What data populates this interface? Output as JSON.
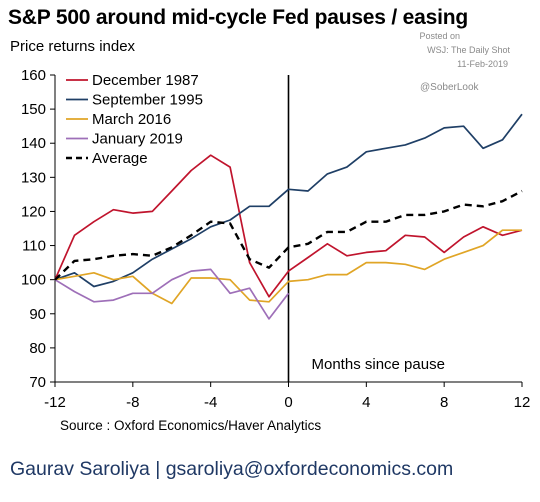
{
  "header": {
    "title": "S&P 500 around mid-cycle Fed pauses / easing",
    "subtitle": "Price returns index"
  },
  "watermark": {
    "posted_on": "Posted on",
    "outlet": "WSJ: The Daily Shot",
    "date": "11-Feb-2019",
    "handle": "@SoberLook"
  },
  "footer": {
    "source": "Source : Oxford Economics/Haver Analytics",
    "author": "Gaurav Saroliya | gsaroliya@oxfordeconomics.com"
  },
  "chart_data": {
    "type": "line",
    "title": "S&P 500 around mid-cycle Fed pauses / easing",
    "ylabel": "Price returns index",
    "xlim": [
      -12,
      12
    ],
    "ylim": [
      70,
      160
    ],
    "xticks": [
      -12,
      -8,
      -4,
      0,
      4,
      8,
      12
    ],
    "yticks": [
      70,
      80,
      90,
      100,
      110,
      120,
      130,
      140,
      150,
      160
    ],
    "grid": false,
    "legend": "top-left",
    "annotation": {
      "text": "Months since pause",
      "x": 0
    },
    "series": [
      {
        "name": "December 1987",
        "color": "#c0142d",
        "dash": false,
        "x": [
          -12,
          -11,
          -10,
          -9,
          -8,
          -7,
          -6,
          -5,
          -4,
          -3,
          -2,
          -1,
          0,
          1,
          2,
          3,
          4,
          5,
          6,
          7,
          8,
          9,
          10,
          11,
          12
        ],
        "values": [
          100,
          113,
          117,
          120.5,
          119.5,
          120,
          126,
          132,
          136.5,
          133,
          105,
          95,
          102.5,
          106.5,
          110.5,
          107,
          108,
          108.5,
          113,
          112.5,
          108,
          112.5,
          115.5,
          113,
          114.5
        ]
      },
      {
        "name": "September 1995",
        "color": "#1f3f66",
        "dash": false,
        "x": [
          -12,
          -11,
          -10,
          -9,
          -8,
          -7,
          -6,
          -5,
          -4,
          -3,
          -2,
          -1,
          0,
          1,
          2,
          3,
          4,
          5,
          6,
          7,
          8,
          9,
          10,
          11,
          12
        ],
        "values": [
          100,
          102,
          98,
          99.5,
          102,
          106,
          109,
          112,
          115.5,
          117.5,
          121.5,
          121.5,
          126.5,
          126,
          131,
          133,
          137.5,
          138.5,
          139.5,
          141.5,
          144.5,
          145,
          138.5,
          141,
          148.5
        ]
      },
      {
        "name": "March 2016",
        "color": "#e0a526",
        "dash": false,
        "x": [
          -12,
          -11,
          -10,
          -9,
          -8,
          -7,
          -6,
          -5,
          -4,
          -3,
          -2,
          -1,
          0,
          1,
          2,
          3,
          4,
          5,
          6,
          7,
          8,
          9,
          10,
          11,
          12
        ],
        "values": [
          100,
          101,
          102,
          100,
          101,
          96,
          93,
          100.5,
          100.5,
          100,
          94,
          93.5,
          99.5,
          100,
          101.5,
          101.5,
          105,
          105,
          104.5,
          103,
          106,
          108,
          110,
          114.5,
          114.5
        ]
      },
      {
        "name": "January 2019",
        "color": "#9e6fb8",
        "dash": false,
        "x": [
          -12,
          -11,
          -10,
          -9,
          -8,
          -7,
          -6,
          -5,
          -4,
          -3,
          -2,
          -1,
          0
        ],
        "values": [
          100,
          96.5,
          93.5,
          94,
          96,
          96,
          100,
          102.5,
          103,
          96,
          97.5,
          88.5,
          96
        ]
      },
      {
        "name": "Average",
        "color": "#000000",
        "dash": true,
        "x": [
          -12,
          -11,
          -10,
          -9,
          -8,
          -7,
          -6,
          -5,
          -4,
          -3,
          -2,
          -1,
          0,
          1,
          2,
          3,
          4,
          5,
          6,
          7,
          8,
          9,
          10,
          11,
          12
        ],
        "values": [
          100,
          105.5,
          106,
          107,
          107.5,
          107,
          109.5,
          113,
          117,
          116.5,
          106,
          103.5,
          109.5,
          110.5,
          114,
          114,
          117,
          117,
          119,
          119,
          120,
          122,
          121.5,
          123,
          126
        ]
      }
    ]
  }
}
